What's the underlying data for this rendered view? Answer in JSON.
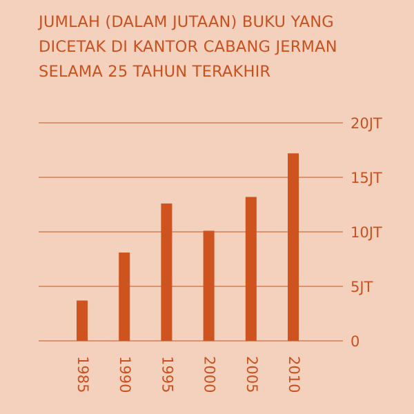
{
  "colors": {
    "background": "#f4d1bd",
    "accent": "#c9511f",
    "bar": "#cf531e"
  },
  "chart_data": {
    "type": "bar",
    "title_lines": [
      "JUMLAH (DALAM JUTAAN) BUKU YANG",
      "DICETAK DI KANTOR CABANG JERMAN",
      "SELAMA 25 TAHUN TERAKHIR"
    ],
    "categories": [
      "1985",
      "1990",
      "1995",
      "2000",
      "2005",
      "2010"
    ],
    "values": [
      3.7,
      8.1,
      12.6,
      10.1,
      13.2,
      17.2
    ],
    "ylim": [
      0,
      20
    ],
    "yticks": [
      0,
      5,
      10,
      15,
      20
    ],
    "ytick_labels": [
      "0",
      "5JT",
      "10JT",
      "15JT",
      "20JT"
    ],
    "grid": true,
    "xlabel": "",
    "ylabel": ""
  }
}
